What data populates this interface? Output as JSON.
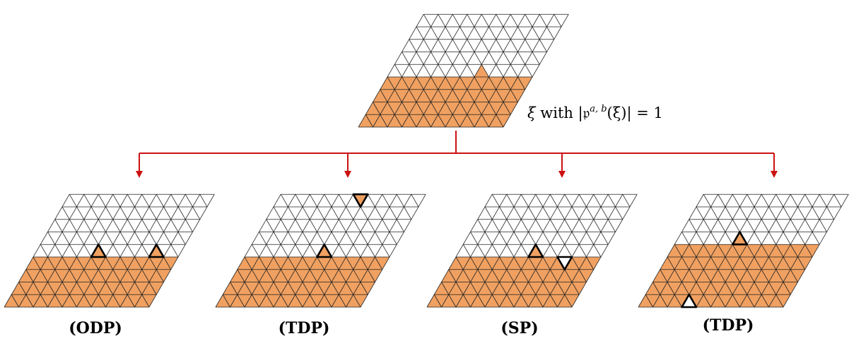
{
  "colors": {
    "fill": "#f0a060",
    "grid": "#222222",
    "arrow": "#cc1111",
    "marker_edge": "#000000",
    "marker_white": "#ffffff"
  },
  "grid": {
    "cols": 10,
    "rows": 9
  },
  "root": {
    "label_parts": {
      "xi": "ξ",
      "with": " with ",
      "open": "|",
      "frak": "𝔭",
      "sup": "a, b",
      "arg": "(ξ)",
      "close": "| = 1"
    },
    "filled_rows": 4,
    "bump": {
      "row": 4,
      "col": 6,
      "type": "up"
    }
  },
  "panels": [
    {
      "caption": "(ODP)",
      "filled_rows": 4,
      "markers": [
        {
          "row": 4,
          "col": 4,
          "dir": "up",
          "fill": "orange"
        },
        {
          "row": 4,
          "col": 8,
          "dir": "up",
          "fill": "orange"
        }
      ]
    },
    {
      "caption": "(TDP)",
      "filled_rows": 4,
      "markers": [
        {
          "row": 4,
          "col": 5,
          "dir": "up",
          "fill": "orange"
        },
        {
          "row": 8,
          "col": 5,
          "dir": "down",
          "fill": "orange"
        }
      ]
    },
    {
      "caption": "(SP)",
      "filled_rows": 4,
      "markers": [
        {
          "row": 4,
          "col": 5,
          "dir": "up",
          "fill": "orange"
        },
        {
          "row": 3,
          "col": 7,
          "dir": "down",
          "fill": "white"
        }
      ]
    },
    {
      "caption": "(TDP)",
      "filled_rows": 5,
      "markers": [
        {
          "row": 5,
          "col": 4,
          "dir": "up",
          "fill": "orange"
        },
        {
          "row": 0,
          "col": 3,
          "dir": "up",
          "fill": "white"
        }
      ]
    }
  ]
}
